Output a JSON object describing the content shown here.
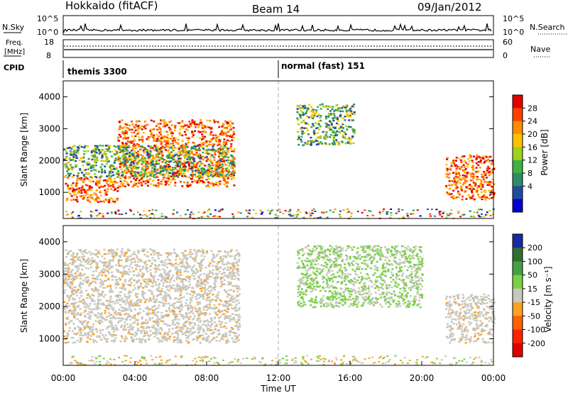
{
  "header": {
    "station": "Hokkaido (fitACF)",
    "beam": "Beam 14",
    "date": "09/Jan/2012"
  },
  "sky_panel": {
    "left_label": "N.Sky",
    "right_label": "N.Search",
    "ticks_left": [
      "10^5",
      "10^0"
    ],
    "ticks_right": [
      "10^5",
      "10^0"
    ]
  },
  "freq_panel": {
    "left_label_1": "Freq.",
    "left_label_2": "[MHz]",
    "ticks_left": [
      "18",
      "8"
    ],
    "right_label": "Nave",
    "ticks_right": [
      "60",
      "0"
    ]
  },
  "cpid_panel": {
    "label": "CPID",
    "modes": [
      "themis 3300",
      "normal (fast) 151"
    ]
  },
  "power_panel": {
    "ylabel": "Slant Range [km]",
    "colorbar_label": "Power [dB]",
    "colorbar_ticks": [
      "28",
      "24",
      "20",
      "16",
      "12",
      "8",
      "4"
    ],
    "colorbar_colors": [
      "#e00000",
      "#ff4000",
      "#ff8c00",
      "#ffc000",
      "#a0d020",
      "#40b040",
      "#2f8a6a",
      "#204ca0",
      "#0000d0"
    ]
  },
  "velocity_panel": {
    "ylabel": "Slant Range [km]",
    "colorbar_label": "Velocity [m s⁻¹]",
    "colorbar_ticks": [
      "200",
      "100",
      "50",
      "15",
      "-15",
      "-50",
      "-100",
      "-200"
    ],
    "colorbar_colors": [
      "#1a2aa0",
      "#2f6f2f",
      "#45a045",
      "#7ad045",
      "#c8c8c0",
      "#ffa020",
      "#ff6000",
      "#ff2000",
      "#e00000"
    ]
  },
  "y_ticks": [
    "1000",
    "2000",
    "3000",
    "4000"
  ],
  "x_ticks": [
    "00:00",
    "04:00",
    "08:00",
    "12:00",
    "16:00",
    "20:00",
    "00:00"
  ],
  "x_label": "Time UT",
  "chart_data": {
    "type": "heatmap",
    "x_unit": "hours UT",
    "y_unit": "km",
    "xlim": [
      0,
      24
    ],
    "ylim": [
      180,
      4500
    ],
    "power_regions": [
      {
        "t": [
          0.1,
          3.0
        ],
        "r": [
          700,
          1500
        ],
        "level": "high"
      },
      {
        "t": [
          3.0,
          9.5
        ],
        "r": [
          1200,
          3300
        ],
        "level": "high"
      },
      {
        "t": [
          0.0,
          9.5
        ],
        "r": [
          1500,
          2500
        ],
        "level": "medium"
      },
      {
        "t": [
          13.0,
          16.2
        ],
        "r": [
          2500,
          3800
        ],
        "level": "medium"
      },
      {
        "t": [
          21.3,
          24.0
        ],
        "r": [
          800,
          2200
        ],
        "level": "high"
      }
    ],
    "velocity_regions": [
      {
        "t": [
          0.0,
          9.8
        ],
        "r": [
          900,
          3800
        ],
        "level": "near_zero"
      },
      {
        "t": [
          13.0,
          20.0
        ],
        "r": [
          2000,
          3900
        ],
        "level": "positive_small"
      },
      {
        "t": [
          21.3,
          24.0
        ],
        "r": [
          900,
          2400
        ],
        "level": "near_zero"
      }
    ]
  }
}
